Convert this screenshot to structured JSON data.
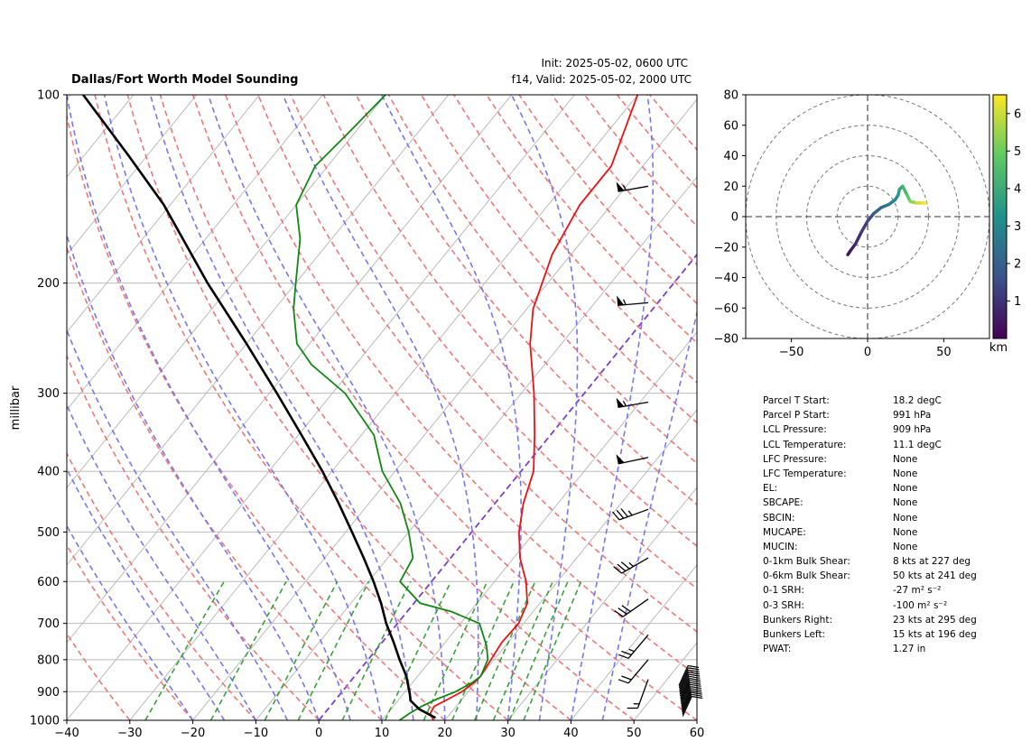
{
  "header": {
    "title": "Dallas/Fort Worth Model Sounding",
    "init": "Init: 2025-05-02, 0600 UTC",
    "valid": "f14, Valid: 2025-05-02, 2000 UTC"
  },
  "skewt": {
    "ylabel": "millibar",
    "pressure_ticks": [
      "100",
      "200",
      "300",
      "400",
      "500",
      "600",
      "700",
      "800",
      "900",
      "1000"
    ],
    "temp_ticks": [
      "−40",
      "−30",
      "−20",
      "−10",
      "0",
      "10",
      "20",
      "30",
      "40",
      "50",
      "60"
    ]
  },
  "hodograph": {
    "x_ticks": [
      "−50",
      "0",
      "50"
    ],
    "y_ticks": [
      "80",
      "60",
      "40",
      "20",
      "0",
      "−20",
      "−40",
      "−60",
      "−80"
    ],
    "colorbar_ticks": [
      "1",
      "2",
      "3",
      "4",
      "5",
      "6"
    ],
    "colorbar_label": "km"
  },
  "stats": [
    {
      "label": "Parcel T Start:",
      "value": "18.2 degC"
    },
    {
      "label": "Parcel P Start:",
      "value": "991 hPa"
    },
    {
      "label": "LCL Pressure:",
      "value": "909 hPa"
    },
    {
      "label": "LCL Temperature:",
      "value": "11.1 degC"
    },
    {
      "label": "LFC Pressure:",
      "value": "None"
    },
    {
      "label": "LFC Temperature:",
      "value": "None"
    },
    {
      "label": "EL:",
      "value": "None"
    },
    {
      "label": "SBCAPE:",
      "value": "None"
    },
    {
      "label": "SBCIN:",
      "value": "None"
    },
    {
      "label": "MUCAPE:",
      "value": "None"
    },
    {
      "label": "MUCIN:",
      "value": "None"
    },
    {
      "label": "0-1km Bulk Shear:",
      "value": "8 kts at 227 deg"
    },
    {
      "label": "0-6km Bulk Shear:",
      "value": "50 kts at 241 deg"
    },
    {
      "label": "0-1 SRH:",
      "value": "-27 m² s⁻²"
    },
    {
      "label": "0-3 SRH:",
      "value": "-100 m² s⁻²"
    },
    {
      "label": "Bunkers Right:",
      "value": "23 kts at 295 deg"
    },
    {
      "label": "Bunkers Left:",
      "value": "15 kts at 196 deg"
    },
    {
      "label": "PWAT:",
      "value": "1.27 in"
    }
  ],
  "colors": {
    "temperature": "#ee1111",
    "dewpoint": "#118811",
    "parcel": "#000000",
    "dry_adiabat": "#f07070",
    "moist_adiabat": "#7070f0",
    "mixing_ratio": "#229922",
    "isotherm_zero": "#7a3fcc",
    "isotherm": "#bbbbbb"
  },
  "chart_data": [
    {
      "type": "line",
      "title": "Dallas/Fort Worth Model Sounding",
      "xlabel": "",
      "ylabel": "millibar",
      "xlim": [
        -40,
        60
      ],
      "ylim": [
        1000,
        100
      ],
      "y_scale": "log",
      "x_skew": "skewed isotherms",
      "grid": true,
      "series": [
        {
          "name": "",
          "role": "temperature",
          "color": "#ee1111",
          "points": [
            [
              1000,
              18.2
            ],
            [
              975,
              16.8
            ],
            [
              950,
              16.5
            ],
            [
              925,
              17.8
            ],
            [
              900,
              19.0
            ],
            [
              870,
              19.8
            ],
            [
              850,
              20.0
            ],
            [
              800,
              19.5
            ],
            [
              750,
              19.0
            ],
            [
              700,
              19.2
            ],
            [
              650,
              18.0
            ],
            [
              600,
              15.0
            ],
            [
              550,
              11.0
            ],
            [
              500,
              7.5
            ],
            [
              450,
              4.5
            ],
            [
              400,
              2.0
            ],
            [
              350,
              -2.5
            ],
            [
              300,
              -8.0
            ],
            [
              250,
              -15.0
            ],
            [
              220,
              -19.0
            ],
            [
              180,
              -23.0
            ],
            [
              150,
              -25.0
            ],
            [
              130,
              -25.0
            ],
            [
              100,
              -30.0
            ]
          ]
        },
        {
          "name": "",
          "role": "dewpoint",
          "color": "#118811",
          "points": [
            [
              1000,
              12.8
            ],
            [
              975,
              13.5
            ],
            [
              950,
              14.5
            ],
            [
              925,
              16.0
            ],
            [
              900,
              18.0
            ],
            [
              870,
              19.5
            ],
            [
              850,
              20.0
            ],
            [
              800,
              19.0
            ],
            [
              760,
              17.0
            ],
            [
              700,
              13.0
            ],
            [
              670,
              7.0
            ],
            [
              650,
              1.0
            ],
            [
              600,
              -5.0
            ],
            [
              550,
              -6.0
            ],
            [
              500,
              -10.0
            ],
            [
              450,
              -15.0
            ],
            [
              400,
              -22.0
            ],
            [
              350,
              -28.0
            ],
            [
              300,
              -38.0
            ],
            [
              270,
              -47.0
            ],
            [
              250,
              -52.0
            ],
            [
              220,
              -57.0
            ],
            [
              200,
              -60.0
            ],
            [
              170,
              -65.0
            ],
            [
              150,
              -70.0
            ],
            [
              130,
              -72.0
            ],
            [
              115,
              -71.0
            ],
            [
              100,
              -70.0
            ]
          ]
        },
        {
          "name": "",
          "role": "parcel",
          "color": "#000000",
          "points": [
            [
              991,
              18.2
            ],
            [
              960,
              14.5
            ],
            [
              930,
              12.0
            ],
            [
              909,
              11.1
            ],
            [
              850,
              8.2
            ],
            [
              800,
              5.0
            ],
            [
              750,
              1.8
            ],
            [
              700,
              -1.8
            ],
            [
              650,
              -5.2
            ],
            [
              600,
              -9.2
            ],
            [
              550,
              -13.8
            ],
            [
              500,
              -19.0
            ],
            [
              450,
              -24.8
            ],
            [
              400,
              -31.5
            ],
            [
              350,
              -39.5
            ],
            [
              300,
              -48.8
            ],
            [
              250,
              -60.0
            ],
            [
              200,
              -74.0
            ],
            [
              150,
              -91.0
            ],
            [
              125,
              -103.0
            ],
            [
              100,
              -118.0
            ]
          ]
        }
      ],
      "wind_barbs": [
        {
          "p": 140,
          "speed_kt": 55,
          "dir_deg": 260
        },
        {
          "p": 215,
          "speed_kt": 55,
          "dir_deg": 265
        },
        {
          "p": 310,
          "speed_kt": 55,
          "dir_deg": 260
        },
        {
          "p": 380,
          "speed_kt": 50,
          "dir_deg": 258
        },
        {
          "p": 460,
          "speed_kt": 35,
          "dir_deg": 250
        },
        {
          "p": 550,
          "speed_kt": 35,
          "dir_deg": 240
        },
        {
          "p": 640,
          "speed_kt": 30,
          "dir_deg": 235
        },
        {
          "p": 730,
          "speed_kt": 25,
          "dir_deg": 220
        },
        {
          "p": 800,
          "speed_kt": 20,
          "dir_deg": 220
        },
        {
          "p": 860,
          "speed_kt": 15,
          "dir_deg": 200
        }
      ]
    },
    {
      "type": "scatter",
      "title": "",
      "xlabel": "",
      "ylabel": "",
      "xlim": [
        -80,
        80
      ],
      "ylim": [
        -80,
        80
      ],
      "rings": [
        20,
        40,
        60,
        80
      ],
      "colorbar": {
        "label": "km",
        "range": [
          0,
          6.5
        ]
      },
      "points_uv_height": [
        [
          -13,
          -25,
          0.0
        ],
        [
          -11,
          -22,
          0.3
        ],
        [
          -8,
          -18,
          0.6
        ],
        [
          -4,
          -10,
          0.9
        ],
        [
          0,
          -3,
          1.2
        ],
        [
          4,
          2,
          1.5
        ],
        [
          9,
          6,
          2.0
        ],
        [
          14,
          8,
          2.4
        ],
        [
          18,
          11,
          2.8
        ],
        [
          20,
          14,
          3.2
        ],
        [
          21,
          18,
          3.5
        ],
        [
          23,
          20,
          3.8
        ],
        [
          26,
          14,
          4.3
        ],
        [
          28,
          10,
          4.8
        ],
        [
          32,
          9,
          5.4
        ],
        [
          36,
          9,
          6.0
        ],
        [
          38,
          9,
          6.4
        ]
      ]
    }
  ]
}
